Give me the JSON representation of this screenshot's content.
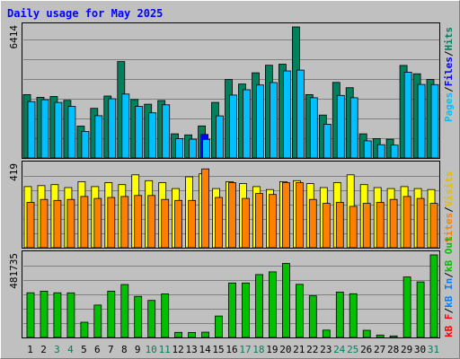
{
  "title": "Daily usage for May 2025",
  "colors": {
    "background": "#c0c0c0",
    "title": "#0000ff",
    "grid": "#808080",
    "hits": "#00805c",
    "files": "#0000ff",
    "pages": "#00c0ff",
    "visits": "#ffff00",
    "sites": "#ff8000",
    "kb_in": "#0080ff",
    "kb_out": "#00c000",
    "kb_f": "#ff0000",
    "weekend_day": "#00805c",
    "weekday": "#000000"
  },
  "panels": {
    "hits": {
      "max_label": "6414",
      "side_labels": [
        "Pages",
        "Files",
        "Hits"
      ]
    },
    "visits": {
      "max_label": "419",
      "side_labels": [
        "Sites",
        "Visits"
      ]
    },
    "kbytes": {
      "max_label": "481735",
      "side_labels": [
        "kB F",
        "kB In",
        "kB Out"
      ]
    }
  },
  "slash": "/",
  "chart_data": {
    "type": "bar",
    "title": "Daily usage for May 2025",
    "categories": [
      "1",
      "2",
      "3",
      "4",
      "5",
      "6",
      "7",
      "8",
      "9",
      "10",
      "11",
      "12",
      "13",
      "14",
      "15",
      "16",
      "17",
      "18",
      "19",
      "20",
      "21",
      "22",
      "23",
      "24",
      "25",
      "26",
      "27",
      "28",
      "29",
      "30",
      "31"
    ],
    "weekend_days": [
      "3",
      "4",
      "10",
      "11",
      "17",
      "18",
      "24",
      "25",
      "31"
    ],
    "panels": [
      {
        "id": "hits",
        "ylim": [
          0,
          6414
        ],
        "series": [
          {
            "name": "Hits",
            "values": [
              3100,
              2970,
              3010,
              2820,
              1560,
              2430,
              3030,
              4720,
              2860,
              2630,
              2810,
              1180,
              1130,
              1570,
              2720,
              3840,
              3620,
              4170,
              4540,
              4590,
              6414,
              3100,
              2100,
              3700,
              3440,
              1180,
              950,
              920,
              4530,
              4120,
              3840
            ]
          },
          {
            "name": "Files",
            "values": [
              0,
              0,
              0,
              0,
              0,
              0,
              0,
              0,
              0,
              0,
              0,
              0,
              0,
              1150,
              0,
              0,
              0,
              0,
              0,
              0,
              0,
              0,
              0,
              0,
              0,
              0,
              0,
              0,
              0,
              0,
              0
            ]
          },
          {
            "name": "Pages",
            "values": [
              2760,
              2850,
              2720,
              2520,
              1300,
              2070,
              2900,
              3130,
              2520,
              2210,
              2600,
              950,
              920,
              910,
              2060,
              3080,
              3340,
              3570,
              3690,
              4260,
              4300,
              2950,
              1650,
              3060,
              2950,
              840,
              650,
              630,
              4200,
              3600,
              3590
            ]
          }
        ]
      },
      {
        "id": "visits",
        "ylim": [
          0,
          419
        ],
        "series": [
          {
            "name": "Visits",
            "values": [
              310,
              315,
              320,
              305,
              335,
              310,
              330,
              320,
              370,
              340,
              330,
              300,
              360,
              375,
              300,
              335,
              325,
              310,
              295,
              335,
              340,
              325,
              305,
              330,
              370,
              320,
              305,
              300,
              310,
              300,
              295
            ]
          },
          {
            "name": "Sites",
            "values": [
              230,
              245,
              240,
              245,
              260,
              250,
              255,
              260,
              265,
              265,
              245,
              240,
              240,
              400,
              255,
              330,
              250,
              275,
              270,
              330,
              330,
              245,
              225,
              230,
              210,
              225,
              230,
              245,
              260,
              250,
              225
            ]
          }
        ]
      },
      {
        "id": "kbytes",
        "ylim": [
          0,
          481735
        ],
        "series": [
          {
            "name": "kB F",
            "values": [
              0,
              0,
              0,
              0,
              0,
              0,
              0,
              0,
              0,
              0,
              0,
              0,
              0,
              0,
              0,
              0,
              0,
              0,
              0,
              0,
              0,
              0,
              0,
              0,
              0,
              0,
              0,
              0,
              0,
              0,
              0
            ]
          },
          {
            "name": "kB In",
            "values": [
              0,
              0,
              0,
              0,
              0,
              0,
              0,
              0,
              0,
              0,
              0,
              0,
              0,
              0,
              0,
              0,
              0,
              0,
              0,
              0,
              0,
              0,
              0,
              0,
              0,
              0,
              0,
              0,
              0,
              0,
              0
            ]
          },
          {
            "name": "kB Out",
            "values": [
              261000,
              270000,
              261000,
              260000,
              89000,
              189000,
              270000,
              309000,
              240000,
              216000,
              254000,
              30000,
              29000,
              31000,
              125000,
              318000,
              318000,
              367000,
              383000,
              432000,
              310000,
              243000,
              43000,
              265000,
              255000,
              42000,
              14000,
              9000,
              353000,
              324000,
              481735
            ]
          }
        ]
      }
    ]
  }
}
